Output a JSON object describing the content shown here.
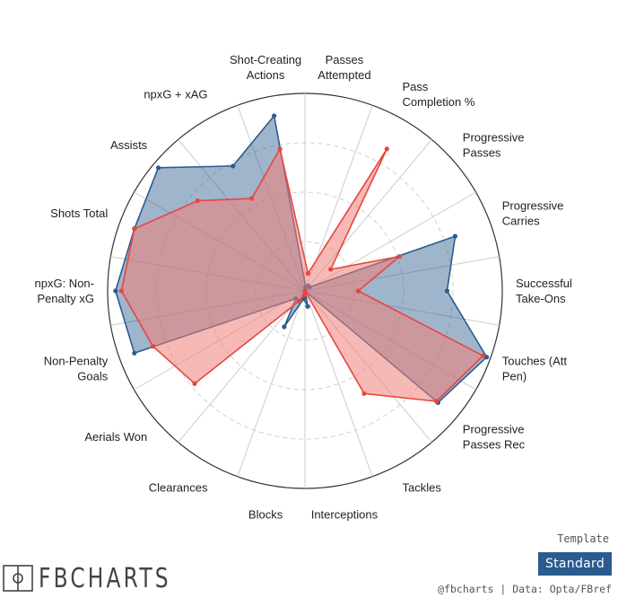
{
  "chart_data": {
    "type": "radar",
    "labels": [
      [
        "Passes",
        "Attempted"
      ],
      [
        "Pass",
        "Completion %"
      ],
      [
        "Progressive",
        "Passes"
      ],
      [
        "Progressive",
        "Carries"
      ],
      [
        "Successful",
        "Take-Ons"
      ],
      [
        "Touches (Att",
        "Pen)"
      ],
      [
        "Progressive",
        "Passes Rec"
      ],
      [
        "Tackles"
      ],
      [
        "Interceptions"
      ],
      [
        "Blocks"
      ],
      [
        "Clearances"
      ],
      [
        "Aerials Won"
      ],
      [
        "Non-Penalty",
        "Goals"
      ],
      [
        "npxG: Non-",
        "Penalty xG"
      ],
      [
        "Shots Total"
      ],
      [
        "Assists"
      ],
      [
        "npxG + xAG"
      ],
      [
        "Shot-Creating",
        "Actions"
      ]
    ],
    "rlim": [
      0,
      100
    ],
    "grid": true,
    "series": [
      {
        "color": "#2b5c8f",
        "fill": "#2b5c8f",
        "values": [
          2,
          3,
          3,
          81,
          72,
          98,
          88,
          0,
          8,
          4,
          21,
          6,
          92,
          96,
          92,
          97,
          73,
          90
        ]
      },
      {
        "color": "#e8453c",
        "fill": "#f08078",
        "values": [
          9,
          83,
          17,
          51,
          27,
          96,
          87,
          60,
          0,
          2,
          6,
          73,
          82,
          93,
          92,
          71,
          54,
          73
        ]
      }
    ]
  },
  "template": {
    "label": "Template",
    "button": "Standard"
  },
  "logo": {
    "text": "FBCHARTS",
    "icon": "pitch-icon"
  },
  "credit": "@fbcharts | Data: Opta/FBref"
}
